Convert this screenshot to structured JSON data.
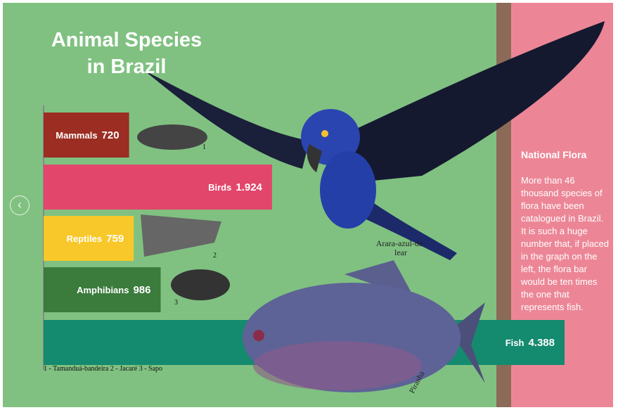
{
  "chart_data": {
    "type": "bar",
    "orientation": "horizontal",
    "title": "Animal Species in Brazil",
    "categories": [
      "Mammals",
      "Birds",
      "Reptiles",
      "Amphibians",
      "Fish"
    ],
    "values": [
      720,
      1924,
      759,
      986,
      4388
    ],
    "value_labels": [
      "720",
      "1.924",
      "759",
      "986",
      "4.388"
    ],
    "colors": [
      "#9b2d22",
      "#e2466b",
      "#f8c82a",
      "#3b7b3c",
      "#148a6f"
    ],
    "image_labels": [
      "1",
      "2",
      "3"
    ],
    "footnote": "1 - Tamanduá-bandeira  2 - Jacaré  3 - Sapo",
    "annotations": [
      "Arara-azul-de-lear",
      "Piranha"
    ]
  },
  "side_panel": {
    "title": "National Flora",
    "text": "More than 46 thousand species of flora have been catalogued in Brazil. It is such a huge number that, if placed in the graph on the left, the flora bar would be ten times the one that represents fish."
  }
}
